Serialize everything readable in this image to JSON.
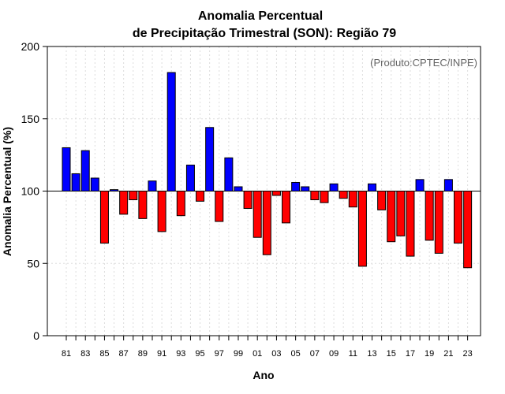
{
  "chart_data": {
    "type": "bar",
    "title": "Anomalia Percentual",
    "subtitle": "de Precipitação Trimestral (SON): Região 79",
    "xlabel": "Ano",
    "ylabel": "Anomalia Percentual (%)",
    "credit": "(Produto:CPTEC/INPE)",
    "ylim": [
      0,
      200
    ],
    "yticks": [
      0,
      50,
      100,
      150,
      200
    ],
    "baseline": 100,
    "grid": true,
    "colors": {
      "above": "#0000ff",
      "below": "#ff0000",
      "edge": "#000000"
    },
    "x_tick_labels": [
      "81",
      "83",
      "85",
      "87",
      "89",
      "91",
      "93",
      "95",
      "97",
      "99",
      "01",
      "03",
      "05",
      "07",
      "09",
      "11",
      "13",
      "15",
      "17",
      "19",
      "21",
      "23"
    ],
    "years": [
      1981,
      1982,
      1983,
      1984,
      1985,
      1986,
      1987,
      1988,
      1989,
      1990,
      1991,
      1992,
      1993,
      1994,
      1995,
      1996,
      1997,
      1998,
      1999,
      2000,
      2001,
      2002,
      2003,
      2004,
      2005,
      2006,
      2007,
      2008,
      2009,
      2010,
      2011,
      2012,
      2013,
      2014,
      2015,
      2016,
      2017,
      2018,
      2019,
      2020,
      2021,
      2022,
      2023
    ],
    "values": [
      130,
      112,
      128,
      109,
      64,
      101,
      84,
      94,
      81,
      107,
      72,
      182,
      83,
      118,
      93,
      144,
      79,
      123,
      103,
      88,
      68,
      56,
      97,
      78,
      106,
      103,
      94,
      92,
      105,
      95,
      89,
      48,
      105,
      87,
      65,
      69,
      55,
      108,
      66,
      57,
      108,
      64,
      47
    ]
  }
}
